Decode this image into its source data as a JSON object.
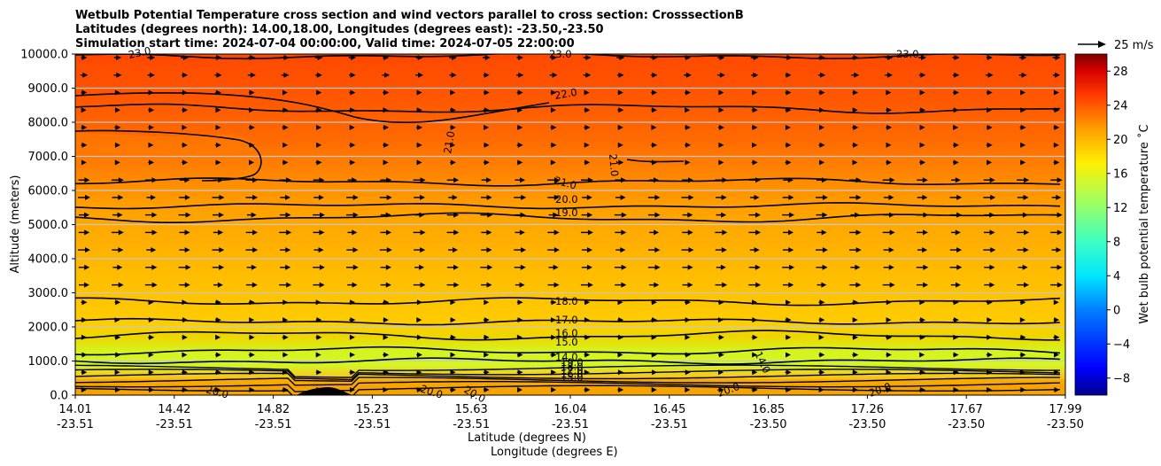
{
  "chart_data": {
    "type": "heatmap",
    "title_lines": [
      "Wetbulb Potential Temperature cross section and wind vectors parallel to cross section: CrosssectionB",
      "Latitudes (degrees north): 14.00,18.00, Longitudes (degrees east): -23.50,-23.50",
      "Simulation start time: 2024-07-04 00:00:00, Valid time: 2024-07-05 22:00:00"
    ],
    "ylabel": "Altitude (meters)",
    "xlabel_lat": "Latitude (degrees N)",
    "xlabel_lon": "Longitude (degrees E)",
    "ylim": [
      0,
      10000
    ],
    "y_ticks": [
      "0.0",
      "1000.0",
      "2000.0",
      "3000.0",
      "4000.0",
      "5000.0",
      "6000.0",
      "7000.0",
      "8000.0",
      "9000.0",
      "10000.0"
    ],
    "x_ticks_lat": [
      "14.01",
      "14.42",
      "14.82",
      "15.23",
      "15.63",
      "16.04",
      "16.45",
      "16.85",
      "17.26",
      "17.67",
      "17.99"
    ],
    "x_ticks_lon": [
      "-23.51",
      "-23.51",
      "-23.51",
      "-23.51",
      "-23.51",
      "-23.51",
      "-23.51",
      "-23.50",
      "-23.50",
      "-23.50",
      "-23.50"
    ],
    "colorbar": {
      "label": "Wet bulb potential temperature ˚C",
      "range": [
        -10,
        30
      ],
      "ticks": [
        "-8",
        "-4",
        "0",
        "4",
        "8",
        "12",
        "16",
        "20",
        "24",
        "28"
      ]
    },
    "wind_key_label": "25 m/s",
    "contour_levels": [
      {
        "value": 14,
        "altitude": 1000
      },
      {
        "value": 15,
        "altitude": 1300
      },
      {
        "value": 16,
        "altitude": 1750
      },
      {
        "value": 17,
        "altitude": 2150
      },
      {
        "value": 18,
        "altitude": 2750
      },
      {
        "value": 19,
        "altitude": 5200
      },
      {
        "value": 20,
        "altitude": 5550
      },
      {
        "value": 21,
        "altitude": 6250
      },
      {
        "value": 22,
        "altitude": 8400
      },
      {
        "value": 23,
        "altitude": 9950
      }
    ],
    "contour_labels": [
      "23.0",
      "22.0",
      "21.0",
      "21.0",
      "21.0",
      "20.0",
      "19.0",
      "18.0",
      "17.0",
      "16.0",
      "15.0",
      "14.0",
      "14.0",
      "19.0",
      "18.0",
      "17.0",
      "16.0",
      "15.0",
      "20.0",
      "20.0",
      "20.0",
      "20.0",
      "20.0",
      "23.0",
      "23.0"
    ]
  }
}
